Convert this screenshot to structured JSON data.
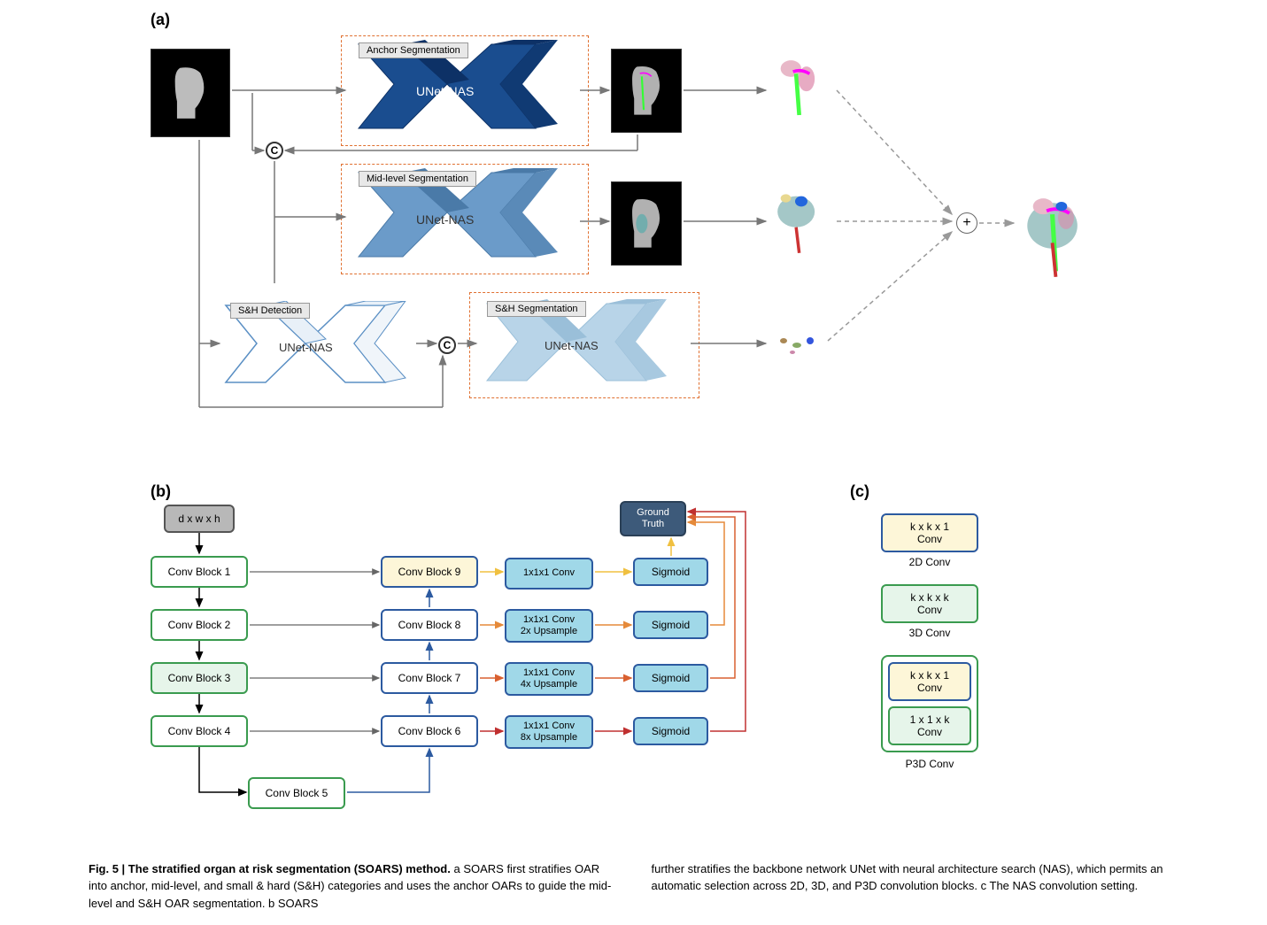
{
  "panel_a": {
    "label": "(a)",
    "blocks": {
      "anchor": {
        "tag": "Anchor Segmentation",
        "text": "UNet-NAS",
        "fill": "#1a4d8f",
        "side": "#0d3166"
      },
      "mid": {
        "tag": "Mid-level Segmentation",
        "text": "UNet-NAS",
        "fill": "#6b9bc9",
        "side": "#4a7aa8"
      },
      "sh_det": {
        "tag": "S&H Detection",
        "text": "UNet-NAS",
        "fill": "#ffffff",
        "side": "#5a8fc4"
      },
      "sh_seg": {
        "tag": "S&H Segmentation",
        "text": "UNet-NAS",
        "fill": "#b8d4e8",
        "side": "#9abfd9"
      }
    },
    "concat_symbol": "C",
    "plus_symbol": "+",
    "colors": {
      "arrow": "#777777",
      "dashed_box": "#e07030",
      "dashed_arrow": "#999999"
    }
  },
  "panel_b": {
    "label": "(b)",
    "input": "d x w x h",
    "encoder": [
      "Conv Block 1",
      "Conv Block 2",
      "Conv Block 3",
      "Conv Block 4",
      "Conv Block 5"
    ],
    "decoder": [
      "Conv Block 9",
      "Conv Block 8",
      "Conv Block 7",
      "Conv Block 6"
    ],
    "mid_ops": [
      "1x1x1 Conv",
      "1x1x1 Conv\n2x Upsample",
      "1x1x1 Conv\n4x Upsample",
      "1x1x1 Conv\n8x Upsample"
    ],
    "sigmoid": "Sigmoid",
    "gt": "Ground\nTruth",
    "arrow_colors": {
      "down": "#000000",
      "skip": "#666666",
      "up_blue": "#2c5aa0",
      "lvl0": "#f0c040",
      "lvl1": "#e58a3a",
      "lvl2": "#d96030",
      "lvl3": "#c03030"
    }
  },
  "panel_c": {
    "label": "(c)",
    "items": [
      {
        "type": "single",
        "style": "yellow",
        "text": "k x k x 1\nConv",
        "label": "2D Conv"
      },
      {
        "type": "single",
        "style": "green",
        "text": "k x k x k\nConv",
        "label": "3D Conv"
      },
      {
        "type": "group",
        "blocks": [
          {
            "style": "yellow",
            "text": "k x k x 1\nConv"
          },
          {
            "style": "green",
            "text": "1 x 1 x k\nConv"
          }
        ],
        "label": "P3D Conv"
      }
    ]
  },
  "caption": {
    "title": "Fig. 5 | The stratified organ at risk segmentation (SOARS) method.",
    "col1": " a SOARS first stratifies OAR into anchor, mid-level, and small & hard (S&H) categories and uses the anchor OARs to guide the mid-level and S&H OAR segmentation. b SOARS",
    "col2": "further stratifies the backbone network UNet with neural architecture search (NAS), which permits an automatic selection across 2D, 3D, and P3D convolution blocks. c The NAS convolution setting."
  }
}
